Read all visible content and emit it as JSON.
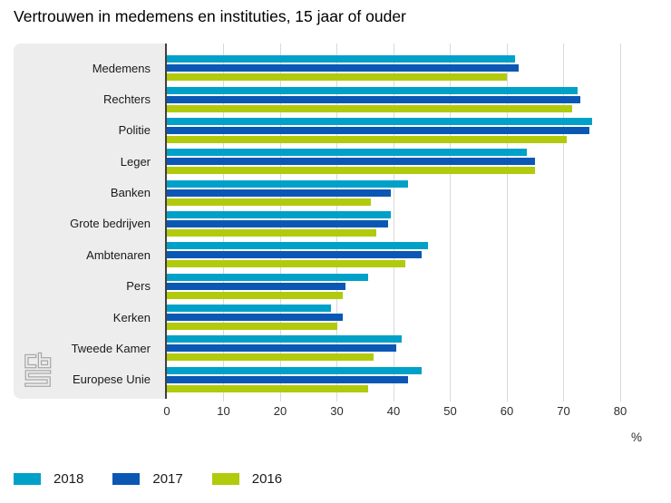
{
  "title": "Vertrouwen in medemens en instituties, 15 jaar of ouder",
  "unit_label": "%",
  "logo_name": "cbs-logo",
  "chart_data": {
    "type": "bar",
    "orientation": "horizontal",
    "title": "Vertrouwen in medemens en instituties, 15 jaar of ouder",
    "xlabel": "%",
    "ylabel": "",
    "xlim": [
      0,
      84.5
    ],
    "x_ticks": [
      0,
      10,
      20,
      30,
      40,
      50,
      60,
      70,
      80
    ],
    "grid": "vertical",
    "legend_position": "bottom-left",
    "categories": [
      "Medemens",
      "Rechters",
      "Politie",
      "Leger",
      "Banken",
      "Grote bedrijven",
      "Ambtenaren",
      "Pers",
      "Kerken",
      "Tweede Kamer",
      "Europese Unie"
    ],
    "series": [
      {
        "name": "2018",
        "color": "#00a1c9",
        "values": [
          61.5,
          72.5,
          75,
          63.5,
          42.5,
          39.5,
          46,
          35.5,
          29,
          41.5,
          45
        ]
      },
      {
        "name": "2017",
        "color": "#0a58b4",
        "values": [
          62,
          73,
          74.5,
          65,
          39.5,
          39,
          45,
          31.5,
          31,
          40.5,
          42.5
        ]
      },
      {
        "name": "2016",
        "color": "#b1ca0c",
        "values": [
          60,
          71.5,
          70.5,
          65,
          36,
          37,
          42,
          31,
          30,
          36.5,
          35.5
        ]
      }
    ]
  },
  "colors": {
    "panel_bg": "#ededed",
    "gridline": "#d9d9d9",
    "axis_line": "#404040",
    "title_text": "#000000",
    "logo": "#a8a8a8"
  }
}
